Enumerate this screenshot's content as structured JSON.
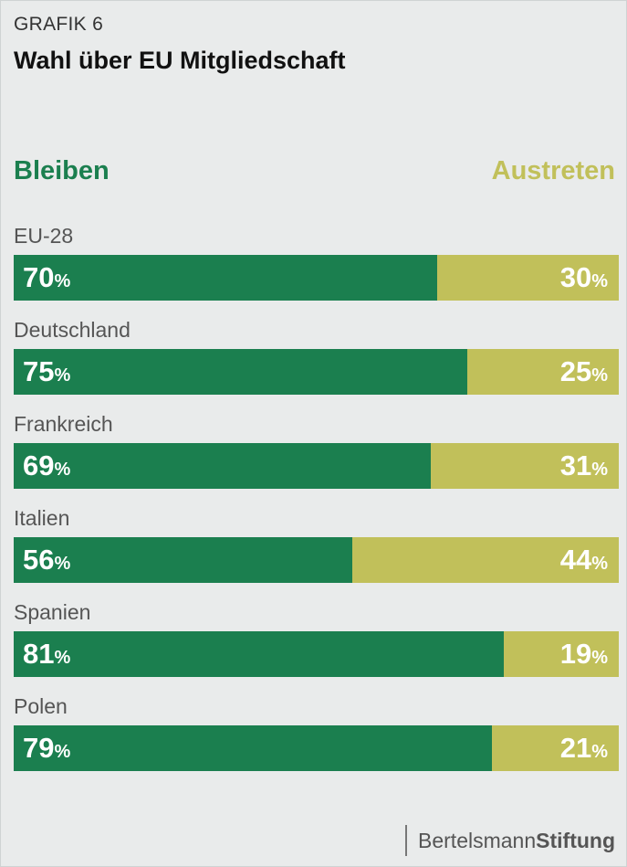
{
  "header": {
    "kicker": "GRAFIK 6",
    "title": "Wahl über EU Mitgliedschaft"
  },
  "colors": {
    "stay": "#1b7f4f",
    "leave": "#c1c05a",
    "background": "#e9ebeb"
  },
  "chart_data": {
    "type": "bar",
    "orientation": "horizontal",
    "stacked": true,
    "title": "Wahl über EU Mitgliedschaft",
    "unit": "%",
    "categories": [
      "EU-28",
      "Deutschland",
      "Frankreich",
      "Italien",
      "Spanien",
      "Polen"
    ],
    "series": [
      {
        "name": "Bleiben",
        "values": [
          70,
          75,
          69,
          56,
          81,
          79
        ]
      },
      {
        "name": "Austreten",
        "values": [
          30,
          25,
          31,
          44,
          19,
          21
        ]
      }
    ],
    "xlim": [
      0,
      100
    ]
  },
  "footer": {
    "brand_regular": "Bertelsmann",
    "brand_bold": "Stiftung"
  }
}
